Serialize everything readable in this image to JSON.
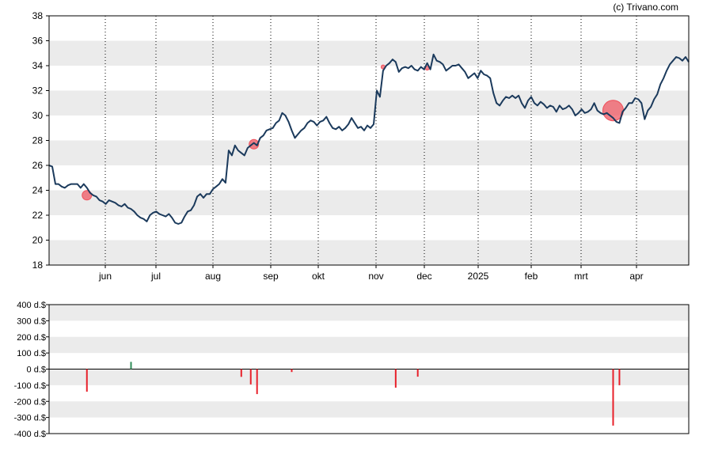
{
  "chart_data": [
    {
      "type": "line",
      "title": "",
      "watermark": "(c) Trivano.com",
      "ylim": [
        18,
        38
      ],
      "yticks": [
        18,
        20,
        22,
        24,
        26,
        28,
        30,
        32,
        34,
        36,
        38
      ],
      "xticks": [
        "jun",
        "jul",
        "aug",
        "sep",
        "okt",
        "nov",
        "dec",
        "2025",
        "feb",
        "mrt",
        "apr"
      ],
      "grid": "vertical dotted lines at month ticks, alternating horizontal bands",
      "line_color": "#1b3a5c",
      "marker_color": "#ef4f5a",
      "series": [
        {
          "values": [
            26.0,
            25.9,
            24.5,
            24.5,
            24.3,
            24.2,
            24.4,
            24.5,
            24.5,
            24.5,
            24.2,
            24.5,
            24.2,
            23.8,
            23.6,
            23.5,
            23.2,
            23.1,
            22.9,
            23.2,
            23.1,
            23.0,
            22.8,
            22.7,
            22.9,
            22.6,
            22.5,
            22.3,
            22.0,
            21.8,
            21.7,
            21.5,
            22.0,
            22.2,
            22.3,
            22.1,
            22.0,
            21.9,
            22.1,
            21.8,
            21.4,
            21.3,
            21.4,
            21.9,
            22.3,
            22.4,
            22.8,
            23.5,
            23.7,
            23.4,
            23.7,
            23.7,
            24.1,
            24.3,
            24.5,
            24.9,
            24.6,
            27.2,
            26.8,
            27.6,
            27.2,
            27.0,
            26.8,
            27.4,
            27.6,
            27.8,
            27.6,
            28.2,
            28.4,
            28.8,
            28.9,
            29.0,
            29.4,
            29.6,
            30.2,
            30.0,
            29.5,
            28.8,
            28.2,
            28.5,
            28.8,
            29.0,
            29.4,
            29.6,
            29.5,
            29.2,
            29.5,
            29.6,
            29.9,
            29.4,
            29.0,
            28.9,
            29.1,
            28.8,
            29.0,
            29.3,
            29.8,
            29.4,
            29.0,
            29.1,
            28.8,
            29.2,
            29.0,
            29.3,
            32.0,
            31.5,
            33.6,
            34.0,
            34.2,
            34.5,
            34.3,
            33.5,
            33.8,
            33.9,
            33.8,
            34.0,
            33.7,
            33.6,
            33.9,
            33.7,
            34.2,
            33.7,
            34.9,
            34.4,
            34.3,
            34.1,
            33.6,
            33.8,
            34.0,
            34.0,
            34.1,
            33.8,
            33.5,
            33.0,
            33.2,
            33.4,
            33.0,
            33.6,
            33.3,
            33.2,
            33.0,
            31.8,
            31.0,
            30.8,
            31.2,
            31.5,
            31.4,
            31.6,
            31.4,
            31.6,
            31.0,
            30.6,
            31.2,
            31.5,
            31.0,
            30.8,
            31.1,
            30.9,
            30.6,
            30.8,
            30.7,
            30.3,
            30.8,
            30.5,
            30.6,
            30.8,
            30.5,
            30.0,
            30.2,
            30.5,
            30.2,
            30.3,
            30.5,
            31.0,
            30.4,
            30.2,
            30.1,
            30.2,
            30.0,
            29.8,
            29.5,
            29.4,
            30.3,
            30.6,
            31.0,
            31.0,
            31.4,
            31.3,
            31.0,
            29.7,
            30.4,
            30.7,
            31.3,
            31.7,
            32.5,
            33.0,
            33.6,
            34.1,
            34.4,
            34.7,
            34.6,
            34.4,
            34.7,
            34.3
          ]
        }
      ],
      "event_markers": [
        {
          "index": 12,
          "value": 23.6,
          "size": "small"
        },
        {
          "index": 65,
          "value": 27.7,
          "size": "small"
        },
        {
          "index": 106,
          "value": 33.9,
          "size": "tiny"
        },
        {
          "index": 120,
          "value": 33.8,
          "size": "tiny"
        },
        {
          "index": 179,
          "value": 30.4,
          "size": "large"
        }
      ]
    },
    {
      "type": "bar",
      "ylim": [
        -400,
        400
      ],
      "yticks": [
        400,
        300,
        200,
        100,
        0,
        -100,
        -200,
        -300,
        -400
      ],
      "ytick_labels": [
        "400 d.$",
        "300 d.$",
        "200 d.$",
        "100 d.$",
        "0 d.$",
        "-100 d.$",
        "-200 d.$",
        "-300 d.$",
        "-400 d.$"
      ],
      "positive_color": "#2e8b57",
      "negative_color": "#e8202a",
      "bars": [
        {
          "index": 12,
          "value": -140
        },
        {
          "index": 26,
          "value": 45
        },
        {
          "index": 61,
          "value": -48
        },
        {
          "index": 64,
          "value": -95
        },
        {
          "index": 66,
          "value": -155
        },
        {
          "index": 77,
          "value": -18
        },
        {
          "index": 110,
          "value": -115
        },
        {
          "index": 117,
          "value": -47
        },
        {
          "index": 179,
          "value": -350
        },
        {
          "index": 181,
          "value": -100
        }
      ]
    }
  ]
}
